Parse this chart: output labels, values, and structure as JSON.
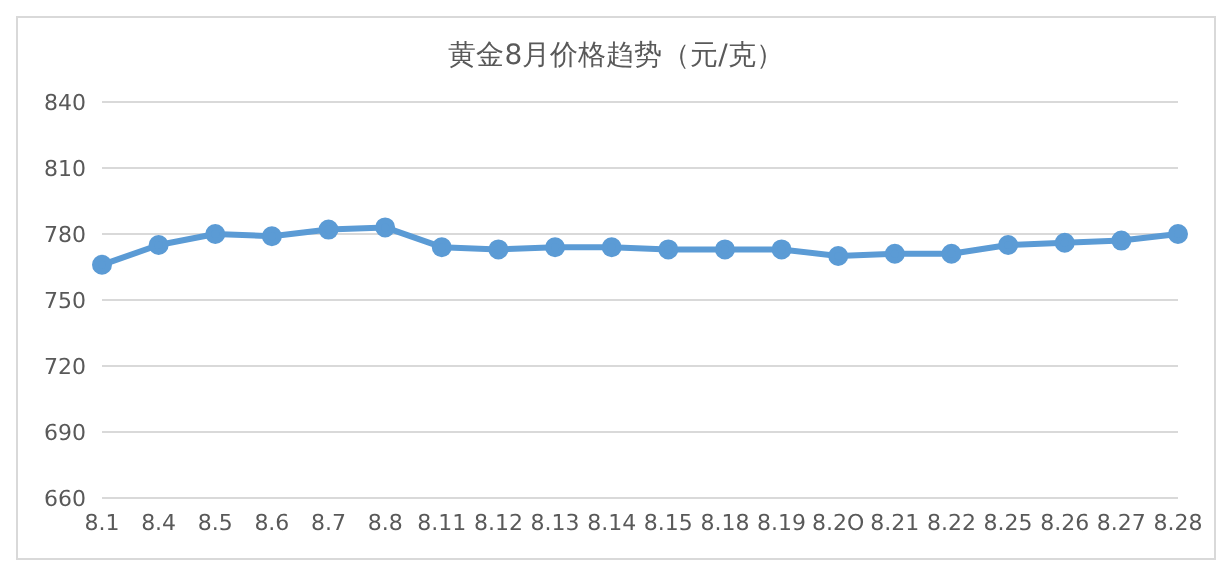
{
  "chart_data": {
    "type": "line",
    "title": "黄金8月价格趋势（元/克）",
    "categories": [
      "8.1",
      "8.4",
      "8.5",
      "8.6",
      "8.7",
      "8.8",
      "8.11",
      "8.12",
      "8.13",
      "8.14",
      "8.15",
      "8.18",
      "8.19",
      "8.2O",
      "8.21",
      "8.22",
      "8.25",
      "8.26",
      "8.27",
      "8.28"
    ],
    "series": [
      {
        "color": "#5b9bd5",
        "values": [
          766,
          775,
          780,
          779,
          782,
          783,
          774,
          773,
          774,
          774,
          773,
          773,
          773,
          770,
          771,
          771,
          775,
          776,
          777,
          780
        ]
      }
    ],
    "ylim": [
      660,
      840
    ],
    "yticks": [
      660,
      690,
      720,
      750,
      780,
      810,
      840
    ],
    "grid": "y",
    "marker": "circle",
    "line_style": "solid",
    "legend": false
  }
}
